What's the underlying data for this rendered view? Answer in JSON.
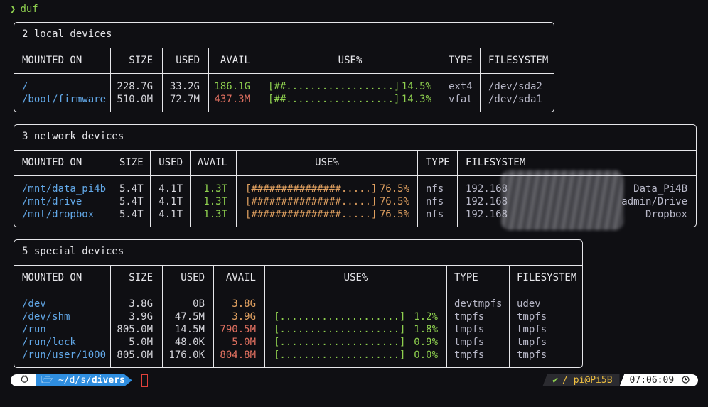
{
  "prompt": {
    "symbol": "❯",
    "command": "duf"
  },
  "local": {
    "title": "2 local devices",
    "headers": [
      "MOUNTED ON",
      "SIZE",
      "USED",
      "AVAIL",
      "USE%",
      "TYPE",
      "FILESYSTEM"
    ],
    "rows": [
      {
        "mount": "/",
        "size": "228.7G",
        "used": "33.2G",
        "avail": "186.1G",
        "bar": "[##..................]",
        "pct": "14.5%",
        "type": "ext4",
        "fs": "/dev/sda2",
        "avail_color": "#8fd14f",
        "use_fraction": 0.145
      },
      {
        "mount": "/boot/firmware",
        "size": "510.0M",
        "used": "72.7M",
        "avail": "437.3M",
        "bar": "[##..................]",
        "pct": "14.3%",
        "type": "vfat",
        "fs": "/dev/sda1",
        "avail_color": "#e07060",
        "use_fraction": 0.143
      }
    ]
  },
  "network": {
    "title": "3 network devices",
    "headers": [
      "MOUNTED ON",
      "SIZE",
      "USED",
      "AVAIL",
      "USE%",
      "TYPE",
      "FILESYSTEM"
    ],
    "rows": [
      {
        "mount": "/mnt/data_pi4b",
        "size": "5.4T",
        "used": "4.1T",
        "avail": "1.3T",
        "bar": "[###############.....]",
        "pct": "76.5%",
        "type": "nfs",
        "fs_prefix": "192.168",
        "fs_suffix": "Data_Pi4B",
        "use_fraction": 0.765
      },
      {
        "mount": "/mnt/drive",
        "size": "5.4T",
        "used": "4.1T",
        "avail": "1.3T",
        "bar": "[###############.....]",
        "pct": "76.5%",
        "type": "nfs",
        "fs_prefix": "192.168",
        "fs_suffix": "admin/Drive",
        "use_fraction": 0.765
      },
      {
        "mount": "/mnt/dropbox",
        "size": "5.4T",
        "used": "4.1T",
        "avail": "1.3T",
        "bar": "[###############.....]",
        "pct": "76.5%",
        "type": "nfs",
        "fs_prefix": "192.168",
        "fs_suffix": "Dropbox",
        "use_fraction": 0.765
      }
    ]
  },
  "special": {
    "title": "5 special devices",
    "headers": [
      "MOUNTED ON",
      "SIZE",
      "USED",
      "AVAIL",
      "USE%",
      "TYPE",
      "FILESYSTEM"
    ],
    "rows": [
      {
        "mount": "/dev",
        "size": "3.8G",
        "used": "0B",
        "avail": "3.8G",
        "bar": "",
        "pct": "",
        "type": "devtmpfs",
        "fs": "udev",
        "avail_color": "#e0a060"
      },
      {
        "mount": "/dev/shm",
        "size": "3.9G",
        "used": "47.5M",
        "avail": "3.9G",
        "bar": "[....................]",
        "pct": "1.2%",
        "type": "tmpfs",
        "fs": "tmpfs",
        "avail_color": "#e0a060",
        "use_fraction": 0.012
      },
      {
        "mount": "/run",
        "size": "805.0M",
        "used": "14.5M",
        "avail": "790.5M",
        "bar": "[....................]",
        "pct": "1.8%",
        "type": "tmpfs",
        "fs": "tmpfs",
        "avail_color": "#e07060",
        "use_fraction": 0.018
      },
      {
        "mount": "/run/lock",
        "size": "5.0M",
        "used": "48.0K",
        "avail": "5.0M",
        "bar": "[....................]",
        "pct": "0.9%",
        "type": "tmpfs",
        "fs": "tmpfs",
        "avail_color": "#e07060",
        "use_fraction": 0.009
      },
      {
        "mount": "/run/user/1000",
        "size": "805.0M",
        "used": "176.0K",
        "avail": "804.8M",
        "bar": "[....................]",
        "pct": "0.0%",
        "type": "tmpfs",
        "fs": "tmpfs",
        "avail_color": "#e07060",
        "use_fraction": 0.0
      }
    ]
  },
  "statusbar": {
    "os_icon": "raspberry-icon",
    "folder_icon": "folder-icon",
    "path_prefix": "~/d/s/",
    "path_current": "divers",
    "check": "✔",
    "sep": "/",
    "user_host": "pi@Pi5B",
    "time": "07:06:09",
    "clock_icon": "clock-icon"
  }
}
